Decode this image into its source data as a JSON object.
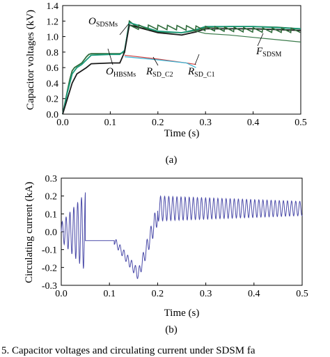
{
  "figure": {
    "caption": "5.  Capacitor voltages and circulating current under SDSM fa",
    "panel_a_label": "(a)",
    "panel_b_label": "(b)"
  },
  "chart_data": [
    {
      "type": "line",
      "xlabel": "Time (s)",
      "ylabel": "Capacitor voltages (kV)",
      "xlim": [
        0,
        0.5
      ],
      "ylim": [
        0,
        1.4
      ],
      "x_ticks": [
        "0.0",
        "0.1",
        "0.2",
        "0.3",
        "0.4",
        "0.5"
      ],
      "y_ticks": [
        "0.0",
        "0.2",
        "0.4",
        "0.6",
        "0.8",
        "1.0",
        "1.2",
        "1.4"
      ],
      "annotations": [
        {
          "main": "O",
          "sub": "SDSMs"
        },
        {
          "main": "O",
          "sub": "HBSMs"
        },
        {
          "main": "R",
          "sub": "SD_C2"
        },
        {
          "main": "R",
          "sub": "SD_C1"
        },
        {
          "main": "F",
          "sub": "SDSM"
        }
      ],
      "series": [
        {
          "color": "#2e6b3a",
          "x": [
            0.0,
            0.005,
            0.01,
            0.015,
            0.02,
            0.025,
            0.03,
            0.035,
            0.04,
            0.045,
            0.05,
            0.055,
            0.06,
            0.08,
            0.1,
            0.12,
            0.13,
            0.14,
            0.15,
            0.16,
            0.2,
            0.25,
            0.28,
            0.3,
            0.35,
            0.4,
            0.45,
            0.5
          ],
          "y": [
            0.0,
            0.15,
            0.3,
            0.45,
            0.56,
            0.6,
            0.62,
            0.64,
            0.66,
            0.7,
            0.74,
            0.77,
            0.78,
            0.78,
            0.78,
            0.78,
            0.8,
            1.2,
            1.15,
            1.12,
            1.06,
            1.05,
            1.08,
            1.12,
            1.13,
            1.13,
            1.12,
            1.1
          ]
        },
        {
          "color": "#1a9a7a",
          "x": [
            0.0,
            0.01,
            0.02,
            0.03,
            0.04,
            0.05,
            0.06,
            0.1,
            0.12,
            0.13,
            0.14,
            0.2,
            0.25,
            0.28,
            0.3,
            0.4,
            0.5
          ],
          "y": [
            0.0,
            0.28,
            0.52,
            0.6,
            0.64,
            0.7,
            0.76,
            0.77,
            0.77,
            0.82,
            1.18,
            1.07,
            1.05,
            1.09,
            1.13,
            1.13,
            1.1
          ]
        },
        {
          "color": "#1a1a1a",
          "x": [
            0.0,
            0.01,
            0.02,
            0.03,
            0.04,
            0.05,
            0.06,
            0.1,
            0.12,
            0.13,
            0.14,
            0.2,
            0.25,
            0.28,
            0.3,
            0.4,
            0.5
          ],
          "y": [
            0.0,
            0.2,
            0.4,
            0.52,
            0.56,
            0.6,
            0.65,
            0.66,
            0.66,
            0.8,
            1.15,
            1.05,
            1.02,
            1.06,
            1.1,
            1.1,
            1.08
          ]
        },
        {
          "color": "#d04040",
          "x": [
            0.13,
            0.2,
            0.26,
            0.28
          ],
          "y": [
            0.76,
            0.71,
            0.66,
            0.64
          ]
        },
        {
          "color": "#3ab6d6",
          "x": [
            0.13,
            0.2,
            0.26,
            0.27,
            0.28
          ],
          "y": [
            0.74,
            0.7,
            0.66,
            0.63,
            0.6
          ]
        },
        {
          "color": "#3a7a4a",
          "x": [
            0.28,
            0.3,
            0.35,
            0.4,
            0.45,
            0.5
          ],
          "y": [
            1.07,
            1.04,
            1.02,
            0.99,
            0.96,
            0.93
          ]
        }
      ]
    },
    {
      "type": "line",
      "xlabel": "Time (s)",
      "ylabel": "Circulating current (kA)",
      "xlim": [
        0,
        0.5
      ],
      "ylim": [
        -0.3,
        0.3
      ],
      "x_ticks": [
        "0.0",
        "0.1",
        "0.2",
        "0.3",
        "0.4",
        "0.5"
      ],
      "y_ticks": [
        "0.3",
        "0.2",
        "0.1",
        "0.0",
        "-0.1",
        "-0.2",
        "-0.3"
      ],
      "series": [
        {
          "color": "#4a4aa8",
          "segments": [
            {
              "x0": 0.0,
              "x1": 0.05,
              "offset": 0.0,
              "amp_start": 0.05,
              "amp_end": 0.22,
              "period": 0.008
            },
            {
              "x0": 0.05,
              "x1": 0.11,
              "offset": -0.05,
              "amp_start": 0.0,
              "amp_end": 0.0,
              "period": 0.008
            },
            {
              "x0": 0.11,
              "x1": 0.16,
              "offset_start": -0.05,
              "offset_end": -0.24,
              "amp_start": 0.02,
              "amp_end": 0.03,
              "period": 0.008
            },
            {
              "x0": 0.16,
              "x1": 0.2,
              "offset_start": -0.24,
              "offset_end": 0.1,
              "amp_start": 0.03,
              "amp_end": 0.06,
              "period": 0.008
            },
            {
              "x0": 0.2,
              "x1": 0.5,
              "offset": 0.13,
              "amp_start": 0.07,
              "amp_end": 0.04,
              "period": 0.0085
            }
          ]
        }
      ]
    }
  ]
}
